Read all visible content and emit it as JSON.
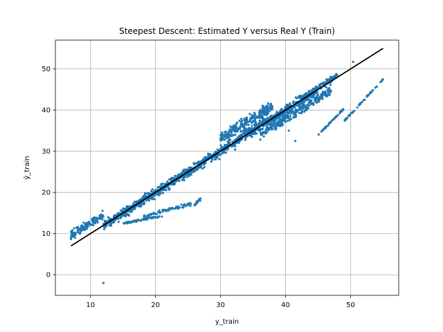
{
  "chart_data": {
    "type": "scatter",
    "title": "Steepest Descent: Estimated Y versus Real Y (Train)",
    "xlabel": "y_train",
    "ylabel": "ŷ_train",
    "xlim": [
      4.6,
      57.4
    ],
    "ylim": [
      -5.0,
      57.0
    ],
    "xticks": [
      10,
      20,
      30,
      40,
      50
    ],
    "yticks": [
      0,
      10,
      20,
      30,
      40,
      50
    ],
    "grid": true,
    "colors": {
      "points": "#1f77b4",
      "fit_line": "#000000",
      "grid": "#b0b0b0"
    },
    "fit_line": {
      "x": [
        7,
        55
      ],
      "y": [
        7,
        55
      ]
    },
    "series": [
      {
        "clusters": [
          {
            "x": [
              7,
              12
            ],
            "y_slope": 1.0,
            "y_intercept": 2.5,
            "spread": 1.5,
            "count": 120
          },
          {
            "x": [
              12,
              45
            ],
            "y_slope": 1.0,
            "y_intercept": 0.0,
            "spread": 1.6,
            "count": 1200
          },
          {
            "x": [
              30,
              38
            ],
            "y_slope": 1.0,
            "y_intercept": 3.0,
            "spread": 2.2,
            "count": 260
          },
          {
            "x": [
              36,
              47
            ],
            "y_slope": 1.0,
            "y_intercept": -2.0,
            "spread": 1.4,
            "count": 220
          },
          {
            "x": [
              43,
              48
            ],
            "y_slope": 1.0,
            "y_intercept": 0.5,
            "spread": 0.9,
            "count": 90
          },
          {
            "x": [
              15,
              21
            ],
            "y_slope": 0.3,
            "y_intercept": 8.0,
            "spread": 0.3,
            "count": 70
          },
          {
            "x": [
              18,
              26
            ],
            "y_slope": 0.4,
            "y_intercept": 7.0,
            "spread": 0.5,
            "count": 60
          },
          {
            "x": [
              26,
              27
            ],
            "y_slope": 1.5,
            "y_intercept": -22.0,
            "spread": 0.5,
            "count": 20
          },
          {
            "x": [
              45,
              49
            ],
            "y_slope": 1.6,
            "y_intercept": -38.0,
            "spread": 0.3,
            "count": 40
          },
          {
            "x": [
              49,
              55
            ],
            "y_slope": 1.7,
            "y_intercept": -46.0,
            "spread": 0.3,
            "count": 50
          },
          {
            "x": [
              38,
              46
            ],
            "y_slope": 1.0,
            "y_intercept": -3.0,
            "spread": 0.3,
            "count": 30
          }
        ],
        "points": [
          {
            "x": 12.0,
            "y": -2.0
          },
          {
            "x": 41.5,
            "y": 32.5
          },
          {
            "x": 50.4,
            "y": 51.7
          },
          {
            "x": 7.2,
            "y": 10.8
          },
          {
            "x": 7.5,
            "y": 11.3
          },
          {
            "x": 7.1,
            "y": 9.5
          },
          {
            "x": 40.5,
            "y": 35.0
          }
        ]
      }
    ]
  }
}
